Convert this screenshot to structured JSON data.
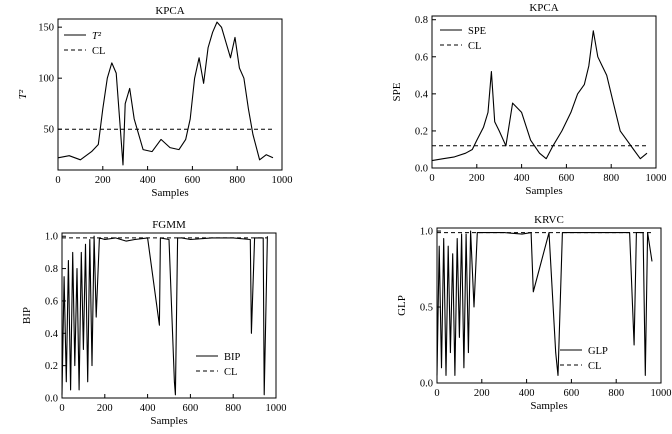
{
  "chart_data": [
    {
      "type": "line",
      "title": "KPCA",
      "xlabel": "Samples",
      "ylabel": "T²",
      "xlim": [
        0,
        1000
      ],
      "ylim": [
        10,
        158
      ],
      "xticks": [
        "0",
        "200",
        "400",
        "600",
        "800",
        "1000"
      ],
      "yticks": [
        "50",
        "100",
        "150"
      ],
      "xtick_values": [
        0,
        200,
        400,
        600,
        800,
        1000
      ],
      "ytick_values": [
        50,
        100,
        150
      ],
      "legend": "top-left",
      "series": [
        {
          "name": "T²",
          "style": "solid",
          "x": [
            0,
            50,
            100,
            150,
            180,
            200,
            220,
            240,
            260,
            275,
            290,
            300,
            320,
            340,
            380,
            420,
            460,
            500,
            540,
            570,
            590,
            610,
            630,
            650,
            670,
            690,
            710,
            730,
            750,
            770,
            790,
            810,
            830,
            850,
            870,
            900,
            930,
            960
          ],
          "y": [
            22,
            24,
            20,
            28,
            35,
            70,
            100,
            115,
            105,
            60,
            15,
            75,
            90,
            60,
            30,
            28,
            40,
            32,
            30,
            40,
            60,
            100,
            120,
            95,
            130,
            145,
            155,
            150,
            135,
            120,
            140,
            110,
            100,
            70,
            45,
            20,
            25,
            22
          ]
        },
        {
          "name": "CL",
          "style": "dashed",
          "x": [
            0,
            960
          ],
          "y": [
            50,
            50
          ]
        }
      ]
    },
    {
      "type": "line",
      "title": "KPCA",
      "xlabel": "Samples",
      "ylabel": "SPE",
      "xlim": [
        0,
        1000
      ],
      "ylim": [
        0,
        0.82
      ],
      "xticks": [
        "0",
        "200",
        "400",
        "600",
        "800",
        "1000"
      ],
      "yticks": [
        "0.0",
        "0.2",
        "0.4",
        "0.6",
        "0.8"
      ],
      "xtick_values": [
        0,
        200,
        400,
        600,
        800,
        1000
      ],
      "ytick_values": [
        0,
        0.2,
        0.4,
        0.6,
        0.8
      ],
      "legend": "top-left",
      "series": [
        {
          "name": "SPE",
          "style": "solid",
          "x": [
            0,
            50,
            100,
            150,
            180,
            200,
            230,
            250,
            265,
            280,
            300,
            330,
            360,
            400,
            440,
            480,
            510,
            540,
            580,
            620,
            650,
            680,
            700,
            720,
            740,
            760,
            780,
            810,
            840,
            870,
            900,
            930,
            960
          ],
          "y": [
            0.04,
            0.05,
            0.06,
            0.08,
            0.1,
            0.15,
            0.22,
            0.3,
            0.52,
            0.25,
            0.2,
            0.12,
            0.35,
            0.3,
            0.15,
            0.08,
            0.05,
            0.12,
            0.2,
            0.3,
            0.4,
            0.45,
            0.55,
            0.74,
            0.6,
            0.55,
            0.5,
            0.35,
            0.2,
            0.15,
            0.1,
            0.05,
            0.08
          ]
        },
        {
          "name": "CL",
          "style": "dashed",
          "x": [
            0,
            960
          ],
          "y": [
            0.12,
            0.12
          ]
        }
      ]
    },
    {
      "type": "line",
      "title": "FGMM",
      "xlabel": "Samples",
      "ylabel": "BIP",
      "xlim": [
        0,
        1000
      ],
      "ylim": [
        0,
        1.02
      ],
      "xticks": [
        "0",
        "200",
        "400",
        "600",
        "800",
        "1000"
      ],
      "yticks": [
        "0.0",
        "0.2",
        "0.4",
        "0.6",
        "0.8",
        "1.0"
      ],
      "xtick_values": [
        0,
        200,
        400,
        600,
        800,
        1000
      ],
      "ytick_values": [
        0,
        0.2,
        0.4,
        0.6,
        0.8,
        1.0
      ],
      "legend": "bottom-right",
      "series": [
        {
          "name": "BIP",
          "style": "solid",
          "x": [
            0,
            10,
            20,
            30,
            40,
            50,
            60,
            70,
            80,
            90,
            100,
            110,
            120,
            130,
            140,
            150,
            160,
            175,
            200,
            250,
            300,
            340,
            400,
            455,
            460,
            500,
            525,
            530,
            540,
            560,
            600,
            700,
            800,
            880,
            885,
            900,
            940,
            945,
            960
          ],
          "y": [
            0.02,
            0.75,
            0.1,
            0.85,
            0.05,
            0.9,
            0.2,
            0.8,
            0.05,
            0.9,
            0.3,
            0.95,
            0.1,
            0.98,
            0.2,
            1.0,
            0.5,
            0.99,
            0.98,
            0.99,
            0.97,
            0.98,
            0.99,
            0.45,
            0.99,
            0.98,
            0.1,
            0.02,
            0.99,
            0.99,
            0.98,
            0.99,
            0.99,
            0.98,
            0.4,
            0.99,
            0.99,
            0.02,
            1.0
          ]
        },
        {
          "name": "CL",
          "style": "dashed",
          "x": [
            0,
            960
          ],
          "y": [
            0.99,
            0.99
          ]
        }
      ]
    },
    {
      "type": "line",
      "title": "KRVC",
      "xlabel": "Samples",
      "ylabel": "GLP",
      "xlim": [
        0,
        1000
      ],
      "ylim": [
        0,
        1.02
      ],
      "xticks": [
        "0",
        "200",
        "400",
        "600",
        "800",
        "1000"
      ],
      "yticks": [
        "0.0",
        "0.5",
        "1.0"
      ],
      "xtick_values": [
        0,
        200,
        400,
        600,
        800,
        1000
      ],
      "ytick_values": [
        0,
        0.5,
        1.0
      ],
      "legend": "bottom-right",
      "series": [
        {
          "name": "GLP",
          "style": "solid",
          "x": [
            0,
            10,
            20,
            30,
            40,
            50,
            60,
            70,
            80,
            90,
            100,
            110,
            120,
            130,
            140,
            150,
            165,
            180,
            220,
            300,
            380,
            420,
            430,
            500,
            530,
            540,
            560,
            600,
            700,
            860,
            880,
            890,
            920,
            930,
            940,
            960
          ],
          "y": [
            0.05,
            0.9,
            0.1,
            0.95,
            0.05,
            0.9,
            0.2,
            0.85,
            0.05,
            0.95,
            0.3,
            0.98,
            0.1,
            0.98,
            0.2,
            1.0,
            0.5,
            0.99,
            0.99,
            0.99,
            0.98,
            0.99,
            0.6,
            0.99,
            0.2,
            0.05,
            0.99,
            0.99,
            0.99,
            0.99,
            0.25,
            0.99,
            0.99,
            0.05,
            0.99,
            0.8
          ]
        },
        {
          "name": "CL",
          "style": "dashed",
          "x": [
            0,
            960
          ],
          "y": [
            0.99,
            0.99
          ]
        }
      ]
    }
  ]
}
